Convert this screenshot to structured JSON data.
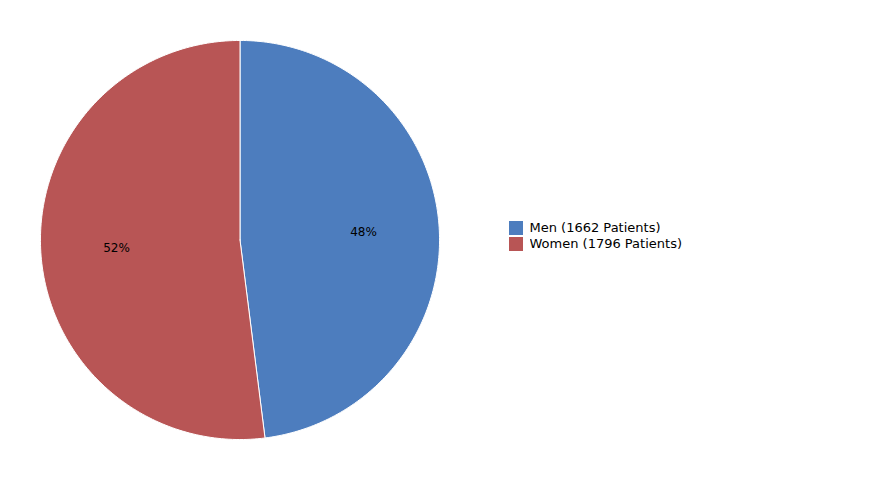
{
  "chart_data": {
    "type": "pie",
    "categories": [
      "Men (1662 Patients)",
      "Women (1796 Patients)"
    ],
    "values": [
      48,
      52
    ],
    "value_labels": [
      "48%",
      "52%"
    ],
    "colors": [
      "#4d7dbe",
      "#b85555"
    ],
    "data_labels": true,
    "legend": "right"
  }
}
